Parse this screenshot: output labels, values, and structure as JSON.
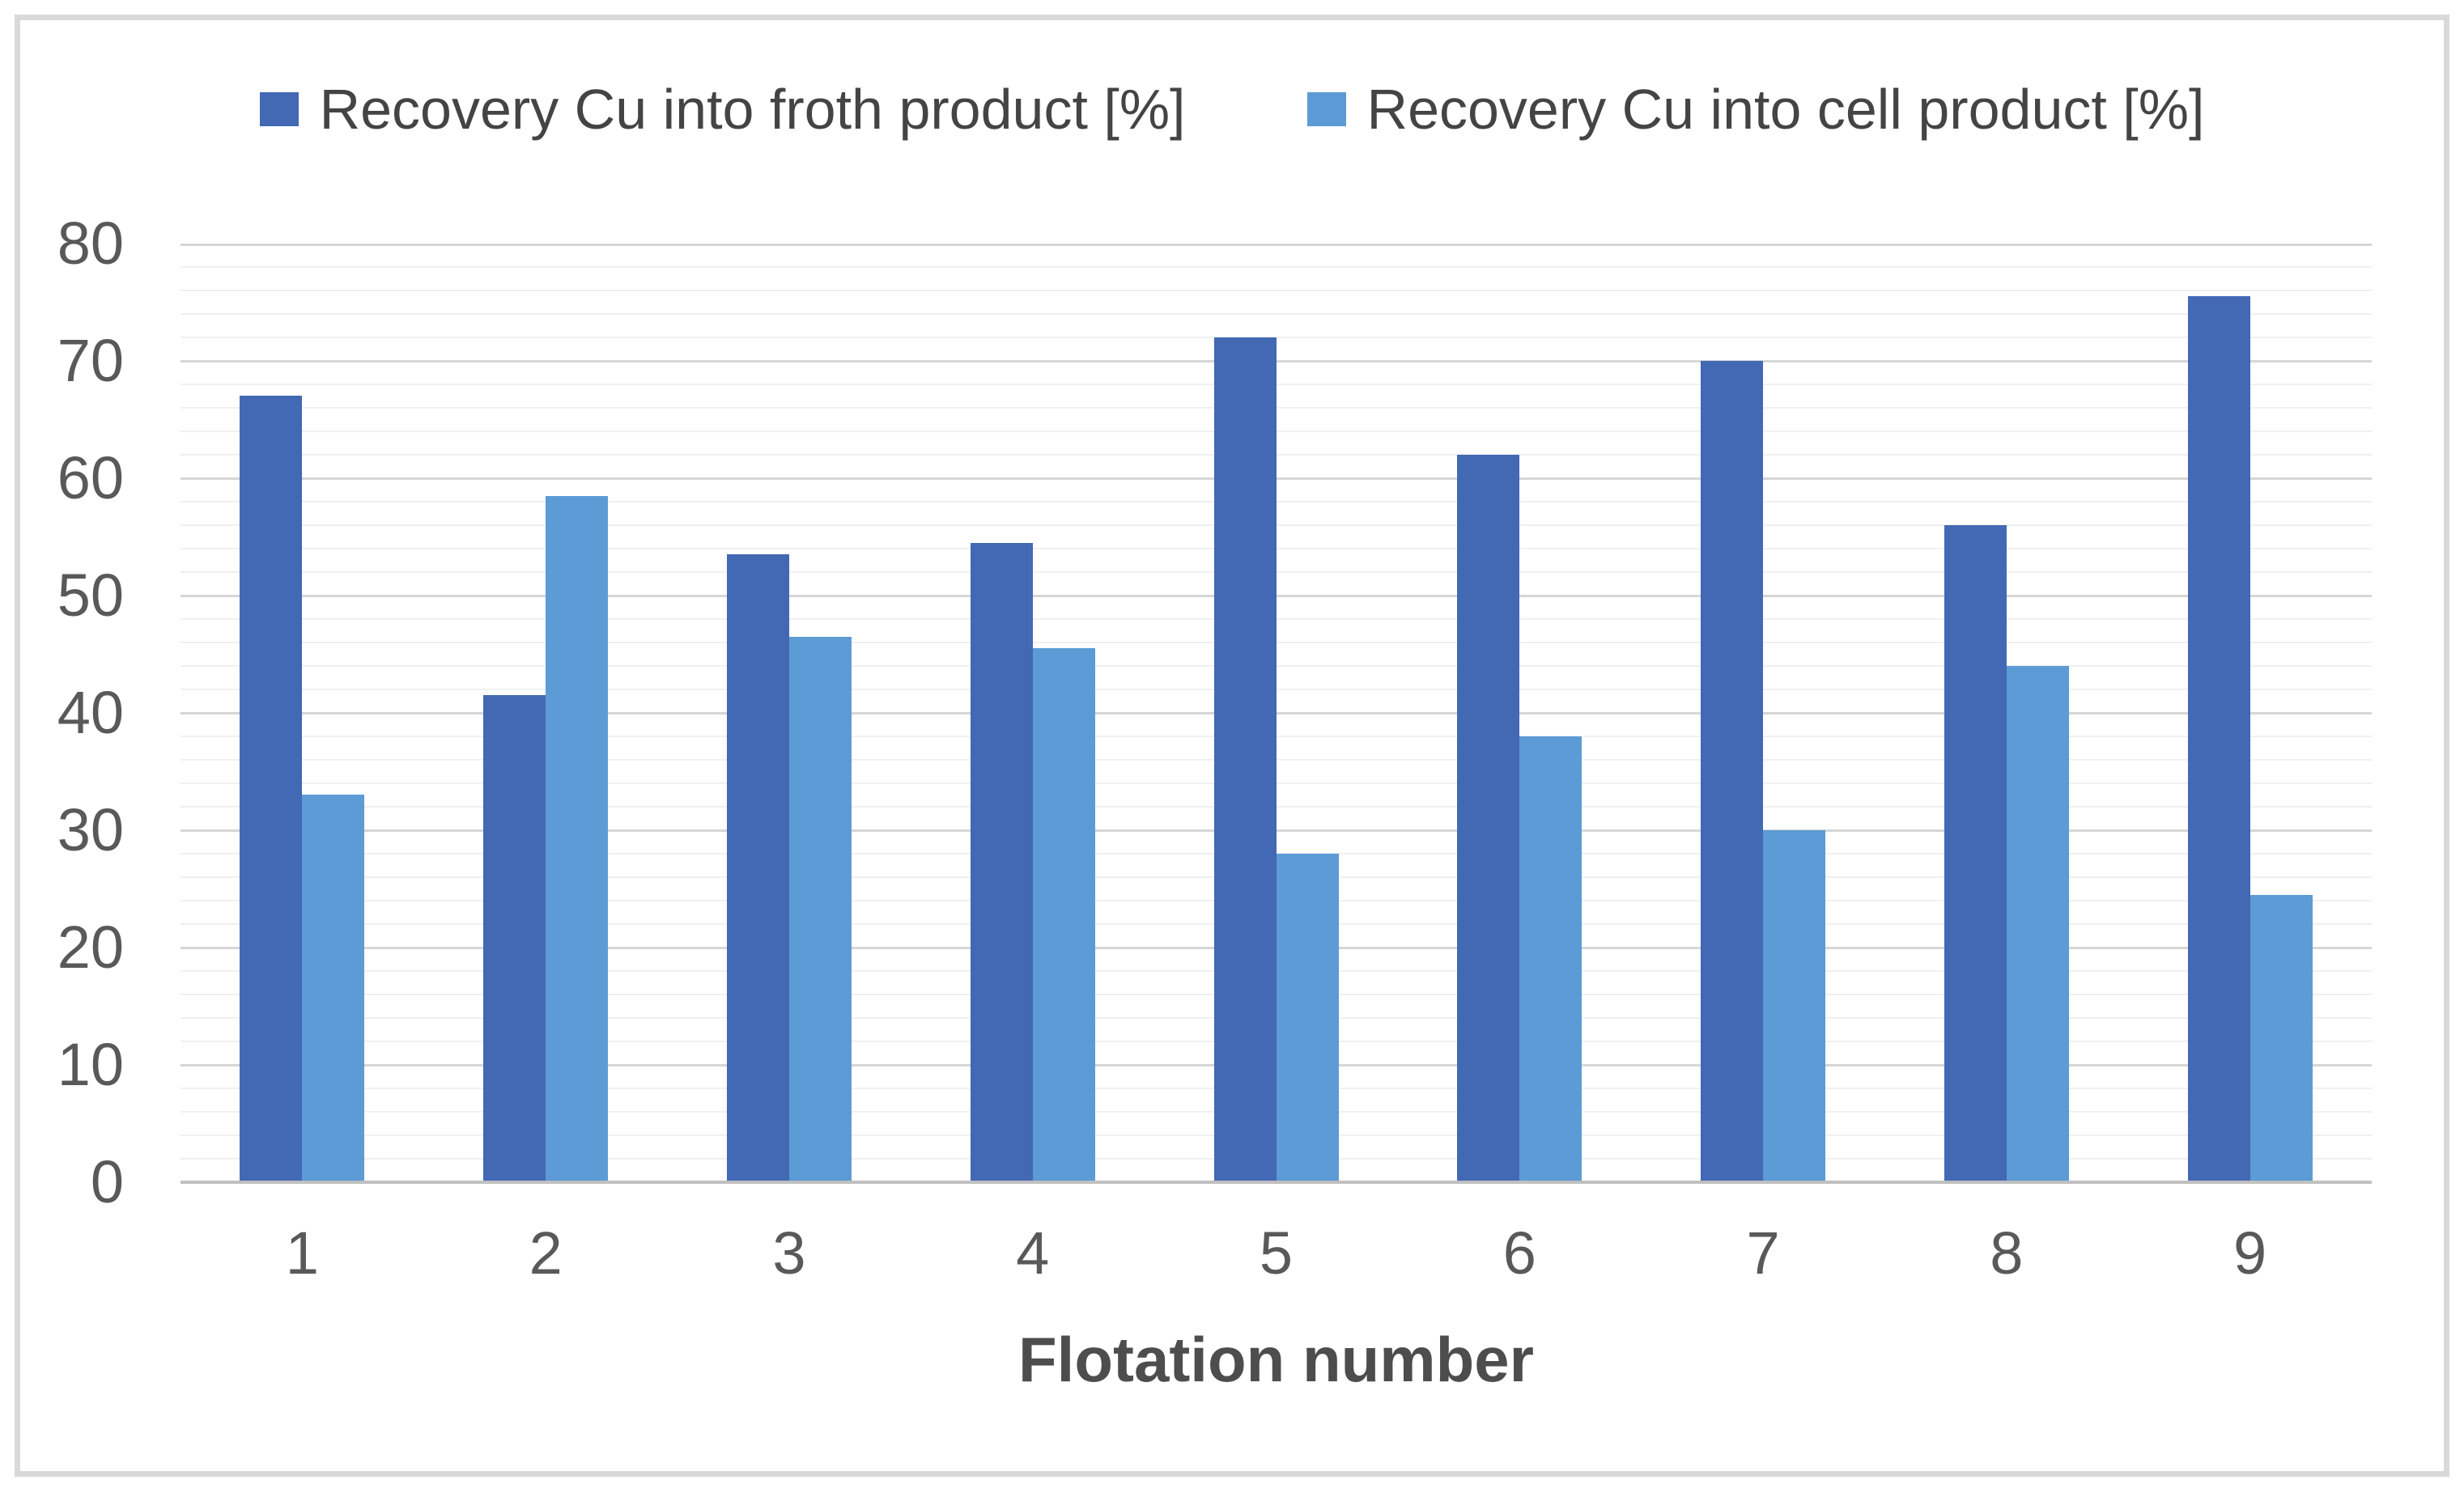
{
  "chart_data": {
    "type": "bar",
    "title": "",
    "xlabel": "Flotation number",
    "ylabel": "",
    "categories": [
      "1",
      "2",
      "3",
      "4",
      "5",
      "6",
      "7",
      "8",
      "9"
    ],
    "series": [
      {
        "name": "Recovery Cu into froth product [%]",
        "color": "#4368B4",
        "values": [
          67,
          41.5,
          53.5,
          54.5,
          72,
          62,
          70,
          56,
          75.5
        ]
      },
      {
        "name": "Recovery Cu into cell product [%]",
        "color": "#5C9BD5",
        "values": [
          33,
          58.5,
          46.5,
          45.5,
          28,
          38,
          30,
          44,
          24.5
        ]
      }
    ],
    "ylim": [
      0,
      80
    ],
    "y_tick_step": 10,
    "y_ticks": [
      0,
      10,
      20,
      30,
      40,
      50,
      60,
      70,
      80
    ],
    "minor_gridline_step": 2,
    "grid": true,
    "legend_position": "top"
  },
  "colors": {
    "major_gridline": "#D6D6D6",
    "minor_gridline": "#F0F0F0",
    "axis_line": "#C0C0C0",
    "figure_border": "#D9D9D9",
    "tick_text": "#595959",
    "legend_text": "#444444",
    "axis_title_text": "#4D4D4D"
  }
}
